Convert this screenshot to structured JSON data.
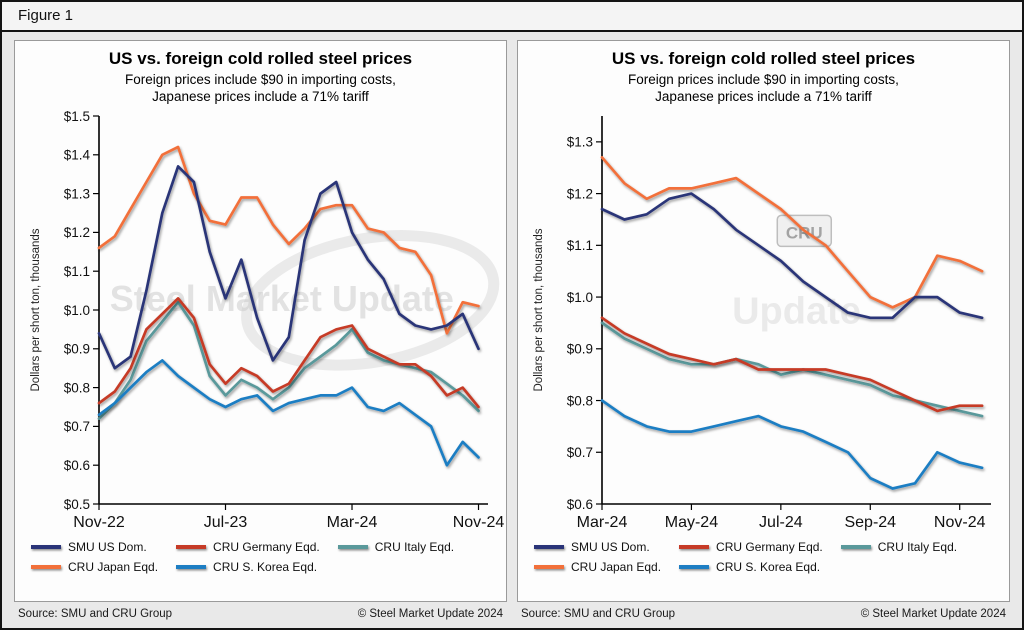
{
  "header": {
    "figure_label": "Figure 1"
  },
  "footer": {
    "source": "Source: SMU and CRU Group",
    "copyright": "© Steel Market Update 2024"
  },
  "colors": {
    "smu_navy": "#2A3478",
    "germany_red": "#C63B27",
    "italy_teal": "#5A999B",
    "japan_orange": "#F2703A",
    "korea_blue": "#1E7EC3",
    "axis": "#000000",
    "watermark_gray": "#c9c9c9"
  },
  "chart_data": [
    {
      "type": "line",
      "title": "US vs. foreign cold rolled steel prices",
      "subtitle_line1": "Foreign prices include $90 in importing costs,",
      "subtitle_line2": "Japanese prices include a 71% tariff",
      "ylabel": "Dollars per short ton, thousands",
      "xlabel": "",
      "grid": false,
      "legend_position": "bottom",
      "ylim": [
        0.5,
        1.5
      ],
      "x_range": [
        0,
        24.6
      ],
      "yticks": [
        {
          "v": 0.5,
          "label": "$0.5"
        },
        {
          "v": 0.6,
          "label": "$0.6"
        },
        {
          "v": 0.7,
          "label": "$0.7"
        },
        {
          "v": 0.8,
          "label": "$0.8"
        },
        {
          "v": 0.9,
          "label": "$0.9"
        },
        {
          "v": 1.0,
          "label": "$1.0"
        },
        {
          "v": 1.1,
          "label": "$1.1"
        },
        {
          "v": 1.2,
          "label": "$1.2"
        },
        {
          "v": 1.3,
          "label": "$1.3"
        },
        {
          "v": 1.4,
          "label": "$1.4"
        },
        {
          "v": 1.5,
          "label": "$1.5"
        }
      ],
      "xticks": [
        {
          "v": 0,
          "label": "Nov-22"
        },
        {
          "v": 8,
          "label": "Jul-23"
        },
        {
          "v": 16,
          "label": "Mar-24"
        },
        {
          "v": 24,
          "label": "Nov-24"
        }
      ],
      "watermarks": [
        {
          "text": "Steel Market Update",
          "x": 0.47,
          "y": 0.47,
          "size": 36,
          "box": false,
          "swoosh": true,
          "opacity": 0.5
        }
      ],
      "legend_order": [
        "SMU US Dom.",
        "CRU Germany Eqd.",
        "CRU Italy Eqd.",
        "CRU Japan Eqd.",
        "CRU S. Korea Eqd."
      ],
      "series": [
        {
          "name": "CRU Italy Eqd.",
          "color": "#5A999B",
          "values": [
            0.72,
            0.76,
            0.82,
            0.92,
            0.97,
            1.02,
            0.96,
            0.83,
            0.78,
            0.82,
            0.8,
            0.77,
            0.8,
            0.85,
            0.88,
            0.91,
            0.95,
            0.89,
            0.87,
            0.86,
            0.85,
            0.84,
            0.81,
            0.78,
            0.74
          ]
        },
        {
          "name": "CRU S. Korea Eqd.",
          "color": "#1E7EC3",
          "values": [
            0.73,
            0.76,
            0.8,
            0.84,
            0.87,
            0.83,
            0.8,
            0.77,
            0.75,
            0.77,
            0.78,
            0.74,
            0.76,
            0.77,
            0.78,
            0.78,
            0.8,
            0.75,
            0.74,
            0.76,
            0.73,
            0.7,
            0.6,
            0.66,
            0.62
          ]
        },
        {
          "name": "CRU Germany Eqd.",
          "color": "#C63B27",
          "values": [
            0.76,
            0.79,
            0.85,
            0.95,
            0.99,
            1.03,
            0.98,
            0.86,
            0.81,
            0.85,
            0.83,
            0.79,
            0.81,
            0.87,
            0.93,
            0.95,
            0.96,
            0.9,
            0.88,
            0.86,
            0.86,
            0.83,
            0.78,
            0.8,
            0.75
          ]
        },
        {
          "name": "CRU Japan Eqd.",
          "color": "#F2703A",
          "values": [
            1.16,
            1.19,
            1.26,
            1.33,
            1.4,
            1.42,
            1.3,
            1.23,
            1.22,
            1.29,
            1.29,
            1.22,
            1.17,
            1.21,
            1.26,
            1.27,
            1.27,
            1.21,
            1.2,
            1.16,
            1.15,
            1.09,
            0.94,
            1.02,
            1.01
          ]
        },
        {
          "name": "SMU US Dom.",
          "color": "#2A3478",
          "values": [
            0.94,
            0.85,
            0.88,
            1.05,
            1.25,
            1.37,
            1.33,
            1.15,
            1.03,
            1.13,
            0.98,
            0.87,
            0.93,
            1.18,
            1.3,
            1.33,
            1.2,
            1.13,
            1.08,
            0.99,
            0.96,
            0.95,
            0.96,
            0.99,
            0.9
          ]
        }
      ]
    },
    {
      "type": "line",
      "title": "US vs. foreign cold rolled steel prices",
      "subtitle_line1": "Foreign prices include $90 in importing costs,",
      "subtitle_line2": "Japanese prices include a 71% tariff",
      "ylabel": "Dollars per short ton, thousands",
      "xlabel": "",
      "grid": false,
      "legend_position": "bottom",
      "ylim": [
        0.6,
        1.35
      ],
      "x_range": [
        0,
        17.4
      ],
      "yticks": [
        {
          "v": 0.6,
          "label": "$0.6"
        },
        {
          "v": 0.7,
          "label": "$0.7"
        },
        {
          "v": 0.8,
          "label": "$0.8"
        },
        {
          "v": 0.9,
          "label": "$0.9"
        },
        {
          "v": 1.0,
          "label": "$1.0"
        },
        {
          "v": 1.1,
          "label": "$1.1"
        },
        {
          "v": 1.2,
          "label": "$1.2"
        },
        {
          "v": 1.3,
          "label": "$1.3"
        }
      ],
      "xticks": [
        {
          "v": 0,
          "label": "Mar-24"
        },
        {
          "v": 4,
          "label": "May-24"
        },
        {
          "v": 8,
          "label": "Jul-24"
        },
        {
          "v": 12,
          "label": "Sep-24"
        },
        {
          "v": 16,
          "label": "Nov-24"
        }
      ],
      "watermarks": [
        {
          "text": "CRU",
          "x": 0.52,
          "y": 0.3,
          "size": 17,
          "box": true,
          "swoosh": false,
          "opacity": 0.9
        },
        {
          "text": "Update",
          "x": 0.5,
          "y": 0.5,
          "size": 38,
          "box": false,
          "swoosh": false,
          "opacity": 0.35
        }
      ],
      "legend_order": [
        "SMU US Dom.",
        "CRU Germany Eqd.",
        "CRU Italy Eqd.",
        "CRU Japan Eqd.",
        "CRU S. Korea Eqd."
      ],
      "series": [
        {
          "name": "CRU Italy Eqd.",
          "color": "#5A999B",
          "values": [
            0.95,
            0.92,
            0.9,
            0.88,
            0.87,
            0.87,
            0.88,
            0.87,
            0.85,
            0.86,
            0.85,
            0.84,
            0.83,
            0.81,
            0.8,
            0.79,
            0.78,
            0.77
          ]
        },
        {
          "name": "CRU S. Korea Eqd.",
          "color": "#1E7EC3",
          "values": [
            0.8,
            0.77,
            0.75,
            0.74,
            0.74,
            0.75,
            0.76,
            0.77,
            0.75,
            0.74,
            0.72,
            0.7,
            0.65,
            0.63,
            0.64,
            0.7,
            0.68,
            0.67
          ]
        },
        {
          "name": "CRU Germany Eqd.",
          "color": "#C63B27",
          "values": [
            0.96,
            0.93,
            0.91,
            0.89,
            0.88,
            0.87,
            0.88,
            0.86,
            0.86,
            0.86,
            0.86,
            0.85,
            0.84,
            0.82,
            0.8,
            0.78,
            0.79,
            0.79
          ]
        },
        {
          "name": "CRU Japan Eqd.",
          "color": "#F2703A",
          "values": [
            1.27,
            1.22,
            1.19,
            1.21,
            1.21,
            1.22,
            1.23,
            1.2,
            1.17,
            1.13,
            1.1,
            1.05,
            1.0,
            0.98,
            1.0,
            1.08,
            1.07,
            1.05
          ]
        },
        {
          "name": "SMU US Dom.",
          "color": "#2A3478",
          "values": [
            1.17,
            1.15,
            1.16,
            1.19,
            1.2,
            1.17,
            1.13,
            1.1,
            1.07,
            1.03,
            1.0,
            0.97,
            0.96,
            0.96,
            1.0,
            1.0,
            0.97,
            0.96
          ]
        }
      ]
    }
  ]
}
